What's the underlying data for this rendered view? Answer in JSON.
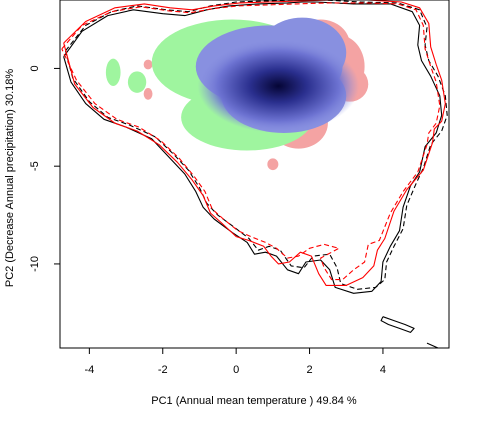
{
  "chart_data": {
    "type": "scatter",
    "title": "",
    "xlabel": "PC1 (Annual mean temperature ) 49.84 %",
    "ylabel": "PC2 (Decrease Annual precipitation) 30.18%",
    "xlim": [
      -4.8,
      5.8
    ],
    "ylim": [
      -14.3,
      3.5
    ],
    "x_ticks": [
      -4,
      -2,
      0,
      2,
      4
    ],
    "y_ticks": [
      0,
      -5,
      -10
    ],
    "grid": false,
    "legend": "none",
    "colors": {
      "axis": "#000000",
      "range_a": "#000000",
      "range_b": "#ff0000",
      "overlap_core": "#0a0a4a",
      "overlap": "#8890e0",
      "niche_a_only": "#9ff59f",
      "niche_b_only": "#f4a3a3"
    },
    "series": [
      {
        "style": "solid",
        "color": "#000000",
        "points": [
          [
            -4.7,
            0.6
          ],
          [
            -4.2,
            1.9
          ],
          [
            -3.5,
            2.7
          ],
          [
            -2.8,
            3.0
          ],
          [
            -2.0,
            2.8
          ],
          [
            -1.4,
            2.7
          ],
          [
            -0.8,
            3.0
          ],
          [
            -0.2,
            3.2
          ],
          [
            0.6,
            3.3
          ],
          [
            1.4,
            3.35
          ],
          [
            1.8,
            3.4
          ],
          [
            2.2,
            3.4
          ],
          [
            3.2,
            3.3
          ],
          [
            4.2,
            3.3
          ],
          [
            4.8,
            2.9
          ],
          [
            5.0,
            2.2
          ],
          [
            4.95,
            1.2
          ],
          [
            5.05,
            0.4
          ],
          [
            5.3,
            -0.4
          ],
          [
            5.55,
            -1.4
          ],
          [
            5.6,
            -2.4
          ],
          [
            5.45,
            -3.3
          ],
          [
            5.15,
            -4.0
          ],
          [
            5.0,
            -5.3
          ],
          [
            4.75,
            -6.0
          ],
          [
            4.55,
            -7.1
          ],
          [
            4.45,
            -8.3
          ],
          [
            4.2,
            -9.1
          ],
          [
            4.0,
            -9.9
          ],
          [
            3.95,
            -10.9
          ],
          [
            3.7,
            -11.4
          ],
          [
            3.2,
            -11.5
          ],
          [
            2.7,
            -11.2
          ],
          [
            2.55,
            -10.3
          ],
          [
            2.3,
            -9.8
          ],
          [
            1.9,
            -9.9
          ],
          [
            1.7,
            -10.5
          ],
          [
            1.4,
            -10.3
          ],
          [
            1.1,
            -9.6
          ],
          [
            0.8,
            -9.4
          ],
          [
            0.5,
            -9.5
          ],
          [
            0.3,
            -8.9
          ],
          [
            -0.1,
            -8.4
          ],
          [
            -0.6,
            -7.7
          ],
          [
            -0.9,
            -7.1
          ],
          [
            -1.1,
            -6.3
          ],
          [
            -1.4,
            -5.4
          ],
          [
            -1.8,
            -4.6
          ],
          [
            -2.3,
            -3.6
          ],
          [
            -3.0,
            -3.0
          ],
          [
            -3.6,
            -2.6
          ],
          [
            -4.1,
            -1.8
          ],
          [
            -4.5,
            -0.7
          ],
          [
            -4.7,
            0.6
          ]
        ]
      },
      {
        "style": "dashed",
        "color": "#000000",
        "points": [
          [
            -4.65,
            0.9
          ],
          [
            -4.1,
            2.2
          ],
          [
            -3.4,
            2.9
          ],
          [
            -2.7,
            3.2
          ],
          [
            -1.9,
            3.0
          ],
          [
            -1.3,
            2.9
          ],
          [
            -0.7,
            3.2
          ],
          [
            0.0,
            3.4
          ],
          [
            0.8,
            3.45
          ],
          [
            1.6,
            3.5
          ],
          [
            2.4,
            3.5
          ],
          [
            3.4,
            3.4
          ],
          [
            4.4,
            3.35
          ],
          [
            5.0,
            3.0
          ],
          [
            5.2,
            2.1
          ],
          [
            5.15,
            1.2
          ],
          [
            5.25,
            0.4
          ],
          [
            5.5,
            -0.4
          ],
          [
            5.7,
            -1.4
          ],
          [
            5.75,
            -2.4
          ],
          [
            5.6,
            -3.2
          ],
          [
            5.3,
            -3.9
          ],
          [
            5.1,
            -5.1
          ],
          [
            4.9,
            -5.9
          ],
          [
            4.65,
            -7.0
          ],
          [
            4.55,
            -8.2
          ],
          [
            4.3,
            -9.1
          ],
          [
            4.1,
            -9.9
          ],
          [
            4.05,
            -10.8
          ],
          [
            3.8,
            -11.2
          ],
          [
            3.3,
            -11.3
          ],
          [
            2.85,
            -11.0
          ],
          [
            2.75,
            -10.2
          ],
          [
            2.55,
            -9.5
          ],
          [
            2.1,
            -9.6
          ],
          [
            1.85,
            -10.2
          ],
          [
            1.5,
            -10.1
          ],
          [
            1.2,
            -9.3
          ],
          [
            0.9,
            -9.1
          ],
          [
            0.6,
            -9.3
          ],
          [
            0.35,
            -8.7
          ],
          [
            0.0,
            -8.2
          ],
          [
            -0.5,
            -7.5
          ],
          [
            -0.8,
            -6.9
          ],
          [
            -1.0,
            -6.1
          ],
          [
            -1.3,
            -5.2
          ],
          [
            -1.7,
            -4.4
          ],
          [
            -2.2,
            -3.5
          ],
          [
            -2.9,
            -2.9
          ],
          [
            -3.5,
            -2.5
          ],
          [
            -4.0,
            -1.7
          ],
          [
            -4.45,
            -0.5
          ],
          [
            -4.65,
            0.9
          ]
        ]
      },
      {
        "style": "solid",
        "color": "#ff0000",
        "points": [
          [
            -4.7,
            1.3
          ],
          [
            -4.1,
            2.4
          ],
          [
            -3.3,
            3.1
          ],
          [
            -2.5,
            3.3
          ],
          [
            -1.8,
            3.1
          ],
          [
            -1.2,
            3.0
          ],
          [
            -0.6,
            3.2
          ],
          [
            0.1,
            3.35
          ],
          [
            0.9,
            3.4
          ],
          [
            1.7,
            3.45
          ],
          [
            2.6,
            3.5
          ],
          [
            3.6,
            3.5
          ],
          [
            4.5,
            3.4
          ],
          [
            5.0,
            3.1
          ],
          [
            5.25,
            2.3
          ],
          [
            5.3,
            1.1
          ],
          [
            5.45,
            0.2
          ],
          [
            5.6,
            -0.6
          ],
          [
            5.7,
            -1.8
          ],
          [
            5.6,
            -2.7
          ],
          [
            5.4,
            -3.1
          ],
          [
            5.35,
            -3.8
          ],
          [
            5.1,
            -5.2
          ],
          [
            4.65,
            -6.2
          ],
          [
            4.3,
            -7.3
          ],
          [
            4.05,
            -8.7
          ],
          [
            3.85,
            -9.3
          ],
          [
            3.75,
            -10.1
          ],
          [
            3.45,
            -10.7
          ],
          [
            3.0,
            -11.1
          ],
          [
            2.45,
            -11.1
          ],
          [
            2.25,
            -10.5
          ],
          [
            2.05,
            -9.6
          ],
          [
            1.75,
            -9.4
          ],
          [
            1.45,
            -9.9
          ],
          [
            1.15,
            -10.0
          ],
          [
            0.95,
            -9.6
          ],
          [
            0.75,
            -9.1
          ],
          [
            0.35,
            -8.8
          ],
          [
            0.0,
            -8.6
          ],
          [
            -0.4,
            -7.9
          ],
          [
            -0.7,
            -7.4
          ],
          [
            -0.9,
            -6.5
          ],
          [
            -1.2,
            -5.7
          ],
          [
            -1.6,
            -4.8
          ],
          [
            -2.1,
            -3.9
          ],
          [
            -2.7,
            -3.2
          ],
          [
            -3.3,
            -2.8
          ],
          [
            -3.9,
            -2.0
          ],
          [
            -4.4,
            -0.8
          ],
          [
            -4.7,
            1.3
          ]
        ]
      },
      {
        "style": "dashed",
        "color": "#ff0000",
        "points": [
          [
            -4.75,
            1.0
          ],
          [
            -4.2,
            2.2
          ],
          [
            -3.4,
            2.9
          ],
          [
            -2.6,
            3.15
          ],
          [
            -1.85,
            2.95
          ],
          [
            -1.25,
            2.85
          ],
          [
            -0.65,
            3.05
          ],
          [
            0.05,
            3.2
          ],
          [
            0.85,
            3.25
          ],
          [
            1.65,
            3.3
          ],
          [
            2.5,
            3.35
          ],
          [
            3.5,
            3.35
          ],
          [
            4.4,
            3.3
          ],
          [
            4.9,
            3.0
          ],
          [
            5.1,
            2.2
          ],
          [
            5.15,
            1.0
          ],
          [
            5.3,
            0.1
          ],
          [
            5.45,
            -0.7
          ],
          [
            5.55,
            -1.9
          ],
          [
            5.45,
            -2.8
          ],
          [
            5.25,
            -3.3
          ],
          [
            5.2,
            -3.9
          ],
          [
            4.95,
            -5.3
          ],
          [
            4.55,
            -6.3
          ],
          [
            4.2,
            -7.4
          ],
          [
            3.9,
            -8.8
          ],
          [
            3.6,
            -9.0
          ],
          [
            3.5,
            -9.9
          ],
          [
            3.2,
            -10.3
          ],
          [
            2.9,
            -10.8
          ],
          [
            2.6,
            -10.8
          ],
          [
            2.4,
            -10.2
          ],
          [
            2.3,
            -9.7
          ],
          [
            2.8,
            -9.2
          ],
          [
            2.4,
            -9.0
          ],
          [
            2.0,
            -9.2
          ],
          [
            1.7,
            -9.6
          ],
          [
            1.4,
            -9.7
          ],
          [
            1.1,
            -9.2
          ],
          [
            0.8,
            -8.9
          ],
          [
            0.4,
            -8.6
          ],
          [
            0.05,
            -8.3
          ],
          [
            -0.35,
            -7.7
          ],
          [
            -0.65,
            -7.2
          ],
          [
            -0.85,
            -6.3
          ],
          [
            -1.15,
            -5.5
          ],
          [
            -1.55,
            -4.6
          ],
          [
            -2.05,
            -3.7
          ],
          [
            -2.65,
            -3.0
          ],
          [
            -3.25,
            -2.6
          ],
          [
            -3.85,
            -1.8
          ],
          [
            -4.35,
            -0.6
          ],
          [
            -4.75,
            1.0
          ]
        ]
      },
      {
        "style": "solid",
        "color": "#000000",
        "points": [
          [
            4.0,
            -12.7
          ],
          [
            4.3,
            -12.9
          ],
          [
            4.6,
            -13.1
          ],
          [
            4.85,
            -13.3
          ],
          [
            4.75,
            -13.5
          ],
          [
            4.45,
            -13.3
          ],
          [
            4.15,
            -13.1
          ],
          [
            3.95,
            -12.9
          ],
          [
            4.0,
            -12.7
          ]
        ]
      },
      {
        "style": "solid",
        "color": "#000000",
        "points": [
          [
            5.2,
            -14.05
          ],
          [
            5.5,
            -14.3
          ]
        ]
      }
    ],
    "density": {
      "niche_b_only_blobs": [
        {
          "center": [
            2.3,
            1.2
          ],
          "rx": 0.8,
          "ry": 1.3
        },
        {
          "center": [
            2.8,
            0.1
          ],
          "rx": 0.7,
          "ry": 1.6
        },
        {
          "center": [
            3.1,
            -0.8
          ],
          "rx": 0.5,
          "ry": 0.9
        },
        {
          "center": [
            1.7,
            -2.8
          ],
          "rx": 0.8,
          "ry": 1.3
        },
        {
          "center": [
            1.0,
            -4.9
          ],
          "rx": 0.15,
          "ry": 0.3
        },
        {
          "center": [
            -2.4,
            0.2
          ],
          "rx": 0.12,
          "ry": 0.25
        },
        {
          "center": [
            -2.4,
            -1.3
          ],
          "rx": 0.12,
          "ry": 0.3
        }
      ],
      "niche_a_only_blobs": [
        {
          "center": [
            -0.1,
            0.3
          ],
          "rx": 2.2,
          "ry": 2.2
        },
        {
          "center": [
            0.3,
            -2.5
          ],
          "rx": 1.8,
          "ry": 1.7
        },
        {
          "center": [
            -2.7,
            -0.7
          ],
          "rx": 0.25,
          "ry": 0.55
        },
        {
          "center": [
            -3.35,
            -0.2
          ],
          "rx": 0.2,
          "ry": 0.7
        }
      ],
      "overlap_blobs": [
        {
          "center": [
            0.9,
            0.1
          ],
          "rx": 2.0,
          "ry": 2.1
        },
        {
          "center": [
            1.3,
            -1.4
          ],
          "rx": 1.7,
          "ry": 1.9
        },
        {
          "center": [
            1.8,
            0.8
          ],
          "rx": 1.2,
          "ry": 1.8
        }
      ],
      "core_peak": [
        1.15,
        -0.9
      ]
    }
  }
}
